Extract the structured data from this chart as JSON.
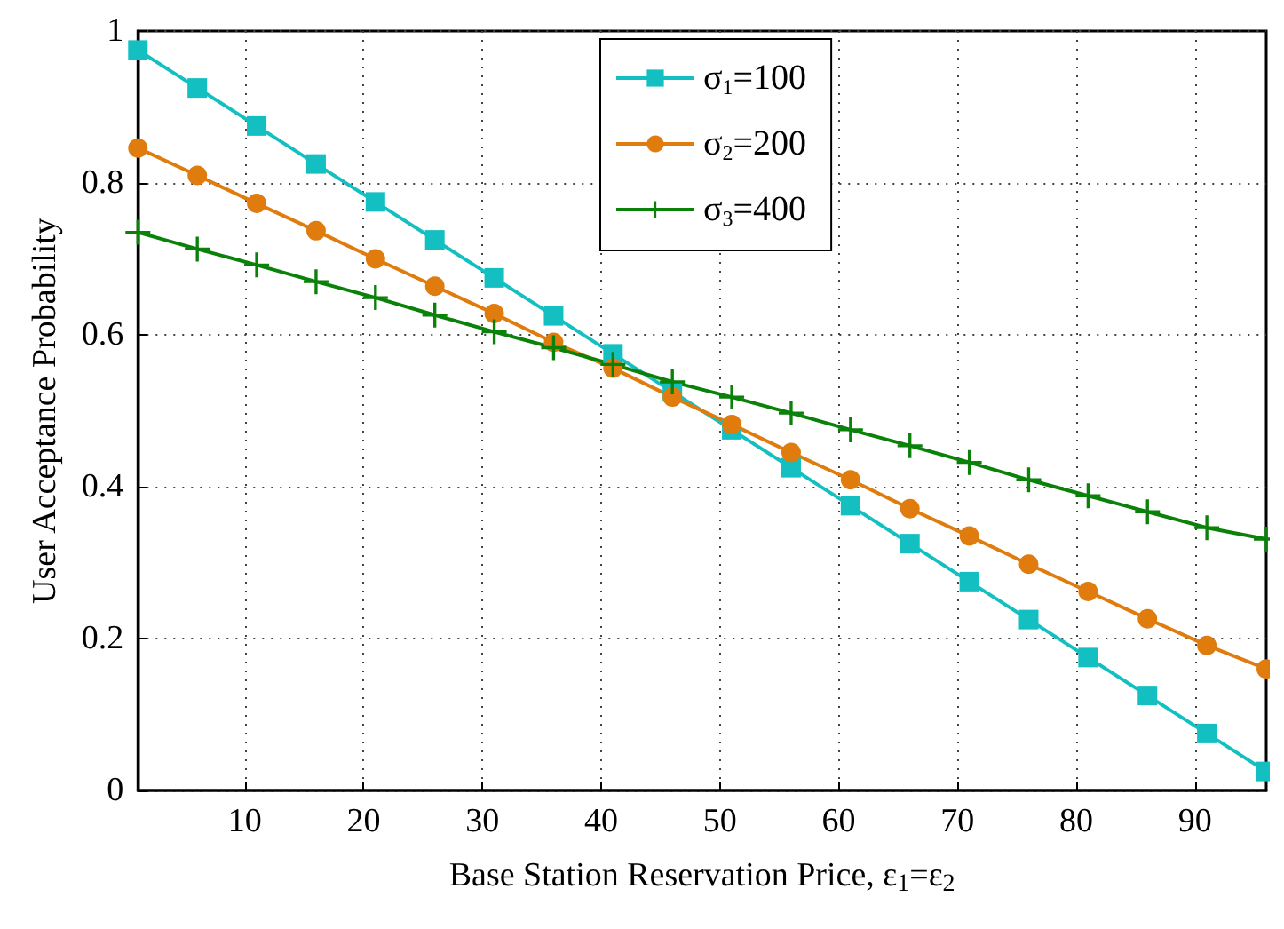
{
  "chart_data": {
    "type": "line",
    "xlabel": "Base Station Reservation Price, ε$_{1}$=ε$_{2}$",
    "ylabel": "User Acceptance Probability",
    "x": [
      1,
      6,
      11,
      16,
      21,
      26,
      31,
      36,
      41,
      46,
      51,
      56,
      61,
      66,
      71,
      76,
      81,
      86,
      91,
      96
    ],
    "series": [
      {
        "name": "σ$_{1}$=100",
        "color": "#14bfc2",
        "marker": "square",
        "values": [
          0.975,
          0.925,
          0.875,
          0.825,
          0.775,
          0.725,
          0.675,
          0.625,
          0.575,
          0.525,
          0.475,
          0.425,
          0.375,
          0.325,
          0.275,
          0.225,
          0.175,
          0.125,
          0.075,
          0.025
        ]
      },
      {
        "name": "σ$_{2}$=200",
        "color": "#e07c0e",
        "marker": "circle",
        "values": [
          0.846,
          0.81,
          0.773,
          0.737,
          0.7,
          0.664,
          0.628,
          0.59,
          0.556,
          0.518,
          0.482,
          0.445,
          0.409,
          0.371,
          0.335,
          0.298,
          0.262,
          0.226,
          0.191,
          0.16
        ]
      },
      {
        "name": "σ$_{3}$=400",
        "color": "#0a820a",
        "marker": "cross",
        "values": [
          0.735,
          0.713,
          0.692,
          0.67,
          0.649,
          0.626,
          0.604,
          0.583,
          0.561,
          0.538,
          0.518,
          0.497,
          0.475,
          0.454,
          0.432,
          0.409,
          0.388,
          0.367,
          0.346,
          0.331
        ]
      }
    ],
    "xlim": [
      1,
      96
    ],
    "xticks": [
      10,
      20,
      30,
      40,
      50,
      60,
      70,
      80,
      90
    ],
    "ylim": [
      0,
      1
    ],
    "yticks": [
      0,
      0.2,
      0.4,
      0.6,
      0.8,
      1
    ],
    "grid": true,
    "legend": "top",
    "line_style": "solid"
  }
}
